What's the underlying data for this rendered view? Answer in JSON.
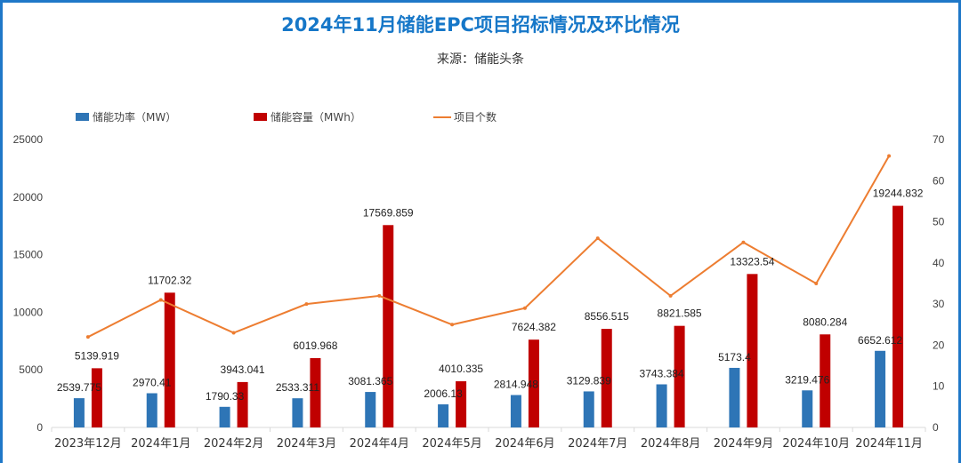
{
  "title": "2024年11月储能EPC项目招标情况及环比情况",
  "subtitle": "来源：储能头条",
  "colors": {
    "frame": "#1f78c8",
    "title": "#1677c8",
    "power": "#2e75b6",
    "capacity": "#c00000",
    "count": "#ed7d31",
    "axis": "#d9d9d9"
  },
  "chart_data": {
    "type": "bar",
    "title": "2024年11月储能EPC项目招标情况及环比情况",
    "subtitle": "来源：储能头条",
    "xlabel": "",
    "ylabel": "",
    "y2label": "",
    "ylim": [
      0,
      25000
    ],
    "y2lim": [
      0,
      70
    ],
    "yticks": [
      "0",
      "5000",
      "10000",
      "15000",
      "20000",
      "25000"
    ],
    "y2ticks": [
      "0",
      "10",
      "20",
      "30",
      "40",
      "50",
      "60",
      "70"
    ],
    "grid": false,
    "legend_position": "top-left",
    "categories": [
      "2023年12月",
      "2024年1月",
      "2024年2月",
      "2024年3月",
      "2024年4月",
      "2024年5月",
      "2024年6月",
      "2024年7月",
      "2024年8月",
      "2024年9月",
      "2024年10月",
      "2024年11月"
    ],
    "series": [
      {
        "name": "储能功率（MW）",
        "type": "bar",
        "axis": "left",
        "values": [
          2539.775,
          2970.41,
          1790.33,
          2533.311,
          3081.365,
          2006.13,
          2814.948,
          3129.839,
          3743.384,
          5173.4,
          3219.476,
          6652.612
        ],
        "labels": [
          "2539.775",
          "2970.41",
          "1790.33",
          "2533.311",
          "3081.365",
          "2006.13",
          "2814.948",
          "3129.839",
          "3743.384",
          "5173.4",
          "3219.476",
          "6652.612"
        ]
      },
      {
        "name": "储能容量（MWh）",
        "type": "bar",
        "axis": "left",
        "values": [
          5139.919,
          11702.32,
          3943.041,
          6019.968,
          17569.859,
          4010.335,
          7624.382,
          8556.515,
          8821.585,
          13323.54,
          8080.284,
          19244.832
        ],
        "labels": [
          "5139.919",
          "11702.32",
          "3943.041",
          "6019.968",
          "17569.859",
          "4010.335",
          "7624.382",
          "8556.515",
          "8821.585",
          "13323.54",
          "8080.284",
          "19244.832"
        ]
      },
      {
        "name": "项目个数",
        "type": "line",
        "axis": "right",
        "values": [
          22,
          31,
          23,
          30,
          32,
          25,
          29,
          46,
          32,
          45,
          35,
          66
        ]
      }
    ]
  }
}
